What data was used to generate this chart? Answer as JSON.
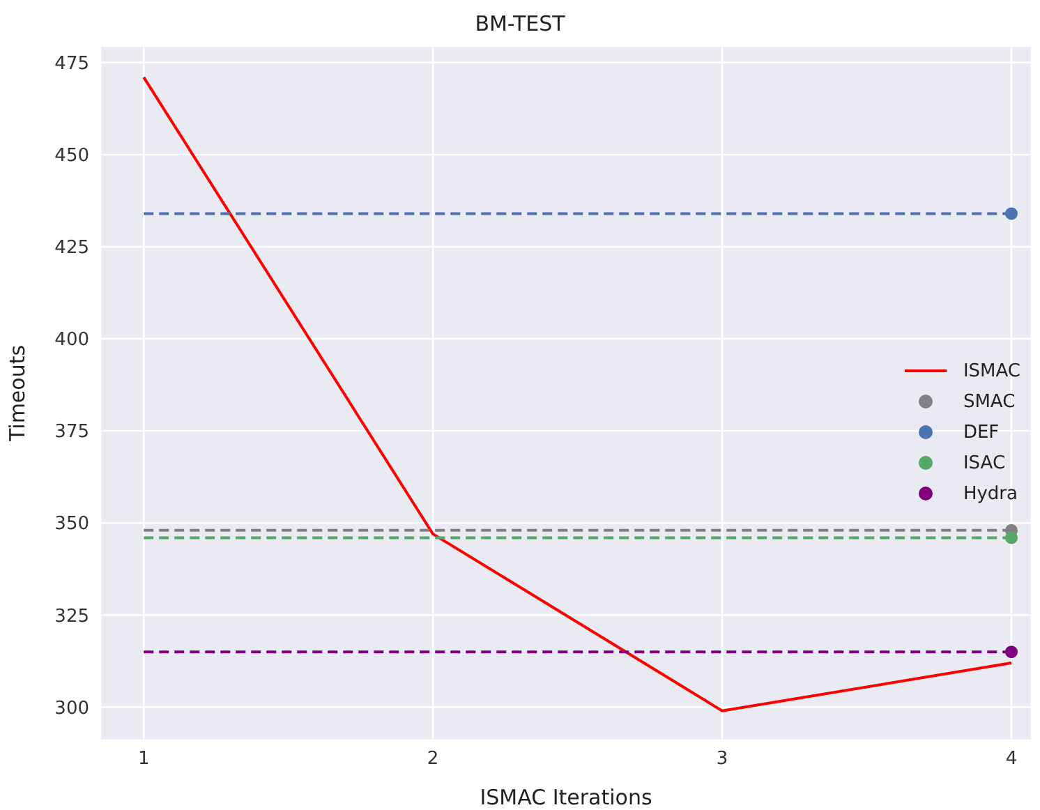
{
  "chart_data": {
    "type": "line",
    "title": "BM-TEST",
    "xlabel": "ISMAC Iterations",
    "ylabel": "Timeouts",
    "xlim": [
      0.85,
      4.07
    ],
    "xticks": [
      1,
      2,
      3,
      4
    ],
    "ylim": [
      291,
      479.5
    ],
    "yticks": [
      300,
      325,
      350,
      375,
      400,
      425,
      450,
      475
    ],
    "grid": true,
    "legend": "right",
    "series": [
      {
        "name": "ISMAC",
        "color": "#ff0000",
        "x": [
          1,
          2,
          3,
          4
        ],
        "values": [
          471,
          347,
          299,
          312
        ],
        "line_style": "solid",
        "marker": "none"
      },
      {
        "type": "line",
        "color": "#808080",
        "x": [
          1,
          4
        ],
        "values": [
          348,
          348
        ],
        "line_style": "dashed",
        "marker": "none"
      },
      {
        "type": "line",
        "color": "#4c72b0",
        "x": [
          1,
          4
        ],
        "values": [
          434,
          434
        ],
        "line_style": "dashed",
        "marker": "none"
      },
      {
        "type": "line",
        "color": "#55a868",
        "x": [
          1,
          4
        ],
        "values": [
          346,
          346
        ],
        "line_style": "dashed",
        "marker": "none"
      },
      {
        "type": "line",
        "color": "#800080",
        "x": [
          1,
          4
        ],
        "values": [
          315,
          315
        ],
        "line_style": "dashed",
        "marker": "none"
      },
      {
        "name": "SMAC",
        "type": "scatter",
        "color": "#808080",
        "x": [
          4
        ],
        "values": [
          348
        ],
        "marker": "circle"
      },
      {
        "name": "DEF",
        "type": "scatter",
        "color": "#4c72b0",
        "x": [
          4
        ],
        "values": [
          434
        ],
        "marker": "circle"
      },
      {
        "name": "ISAC",
        "type": "scatter",
        "color": "#55a868",
        "x": [
          4
        ],
        "values": [
          346
        ],
        "marker": "circle"
      },
      {
        "name": "Hydra",
        "type": "scatter",
        "color": "#800080",
        "x": [
          4
        ],
        "values": [
          315
        ],
        "marker": "circle"
      }
    ]
  }
}
